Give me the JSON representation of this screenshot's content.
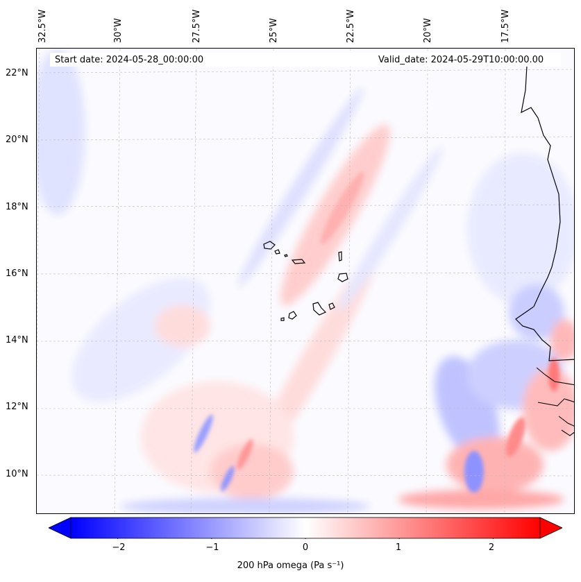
{
  "map": {
    "title_left": "Start date: 2024-05-28_00:00:00",
    "title_right": "Valid_date: 2024-05-29T10:00:00.00",
    "lon_labels": [
      "32.5°W",
      "30°W",
      "27.5°W",
      "25°W",
      "22.5°W",
      "20°W",
      "17.5°W"
    ],
    "lat_labels": [
      "22°N",
      "20°N",
      "18°N",
      "16°N",
      "14°N",
      "12°N",
      "10°N"
    ],
    "region": "Cape Verde islands and West African coast",
    "colors": {
      "negative": "#0000ff",
      "neutral": "#ffffff",
      "positive": "#ff0000",
      "coastline": "#000000"
    }
  },
  "colorbar": {
    "label": "200 hPa omega (Pa s⁻¹)",
    "ticks": [
      "−2",
      "−1",
      "0",
      "1",
      "2"
    ],
    "tick_values": [
      -2,
      -1,
      0,
      1,
      2
    ],
    "range": [
      -2.5,
      2.5
    ]
  }
}
